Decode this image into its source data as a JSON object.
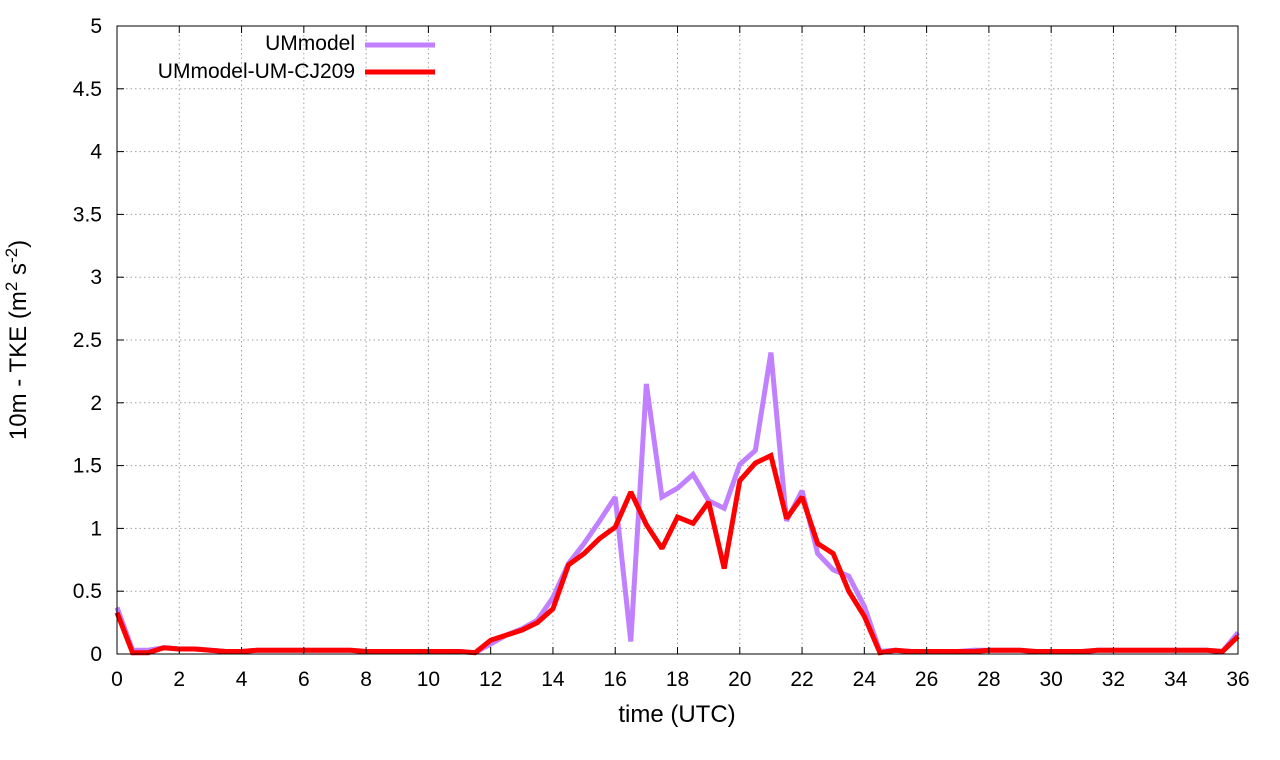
{
  "chart_data": {
    "type": "line",
    "xlabel": "time (UTC)",
    "ylabel_parts": [
      "10m - TKE (m",
      "2",
      " s",
      "-2",
      ")"
    ],
    "xlim": [
      0,
      36
    ],
    "ylim": [
      0,
      5
    ],
    "xticks": [
      0,
      2,
      4,
      6,
      8,
      10,
      12,
      14,
      16,
      18,
      20,
      22,
      24,
      26,
      28,
      30,
      32,
      34,
      36
    ],
    "yticks": [
      0,
      0.5,
      1,
      1.5,
      2,
      2.5,
      3,
      3.5,
      4,
      4.5,
      5
    ],
    "grid": true,
    "legend_position": "top-left",
    "x": [
      0,
      0.5,
      1,
      1.5,
      2,
      2.5,
      3,
      3.5,
      4,
      4.5,
      5,
      5.5,
      6,
      6.5,
      7,
      7.5,
      8,
      8.5,
      9,
      9.5,
      10,
      10.5,
      11,
      11.5,
      12,
      12.5,
      13,
      13.5,
      14,
      14.5,
      15,
      15.5,
      16,
      16.5,
      17,
      17.5,
      18,
      18.5,
      19,
      19.5,
      20,
      20.5,
      21,
      21.5,
      22,
      22.5,
      23,
      23.5,
      24,
      24.5,
      25,
      25.5,
      26,
      26.5,
      27,
      27.5,
      28,
      28.5,
      29,
      29.5,
      30,
      30.5,
      31,
      31.5,
      32,
      32.5,
      33,
      33.5,
      34,
      34.5,
      35,
      35.5,
      36
    ],
    "series": [
      {
        "name": "UMmodel",
        "color": "#c080ff",
        "values": [
          0.37,
          0.03,
          0.03,
          0.05,
          0.04,
          0.04,
          0.03,
          0.02,
          0.02,
          0.03,
          0.03,
          0.03,
          0.03,
          0.03,
          0.03,
          0.03,
          0.02,
          0.02,
          0.02,
          0.02,
          0.02,
          0.02,
          0.02,
          0.01,
          0.08,
          0.15,
          0.2,
          0.27,
          0.45,
          0.72,
          0.88,
          1.06,
          1.25,
          0.1,
          2.15,
          1.25,
          1.32,
          1.43,
          1.22,
          1.16,
          1.51,
          1.62,
          2.4,
          1.06,
          1.3,
          0.8,
          0.67,
          0.62,
          0.38,
          0.02,
          0.03,
          0.02,
          0.02,
          0.02,
          0.02,
          0.03,
          0.03,
          0.03,
          0.03,
          0.02,
          0.02,
          0.02,
          0.02,
          0.03,
          0.03,
          0.03,
          0.03,
          0.03,
          0.03,
          0.03,
          0.03,
          0.02,
          0.17
        ]
      },
      {
        "name": "UMmodel-UM-CJ209",
        "color": "#ff0000",
        "values": [
          0.33,
          0.01,
          0.01,
          0.05,
          0.04,
          0.04,
          0.03,
          0.02,
          0.02,
          0.03,
          0.03,
          0.03,
          0.03,
          0.03,
          0.03,
          0.03,
          0.02,
          0.02,
          0.02,
          0.02,
          0.02,
          0.02,
          0.02,
          0.01,
          0.11,
          0.15,
          0.19,
          0.25,
          0.36,
          0.71,
          0.8,
          0.92,
          1.01,
          1.29,
          1.03,
          0.84,
          1.09,
          1.04,
          1.21,
          0.68,
          1.38,
          1.52,
          1.58,
          1.08,
          1.25,
          0.88,
          0.8,
          0.5,
          0.3,
          0.01,
          0.03,
          0.02,
          0.02,
          0.02,
          0.02,
          0.02,
          0.03,
          0.03,
          0.03,
          0.02,
          0.02,
          0.02,
          0.02,
          0.03,
          0.03,
          0.03,
          0.03,
          0.03,
          0.03,
          0.03,
          0.03,
          0.02,
          0.14
        ]
      }
    ]
  }
}
